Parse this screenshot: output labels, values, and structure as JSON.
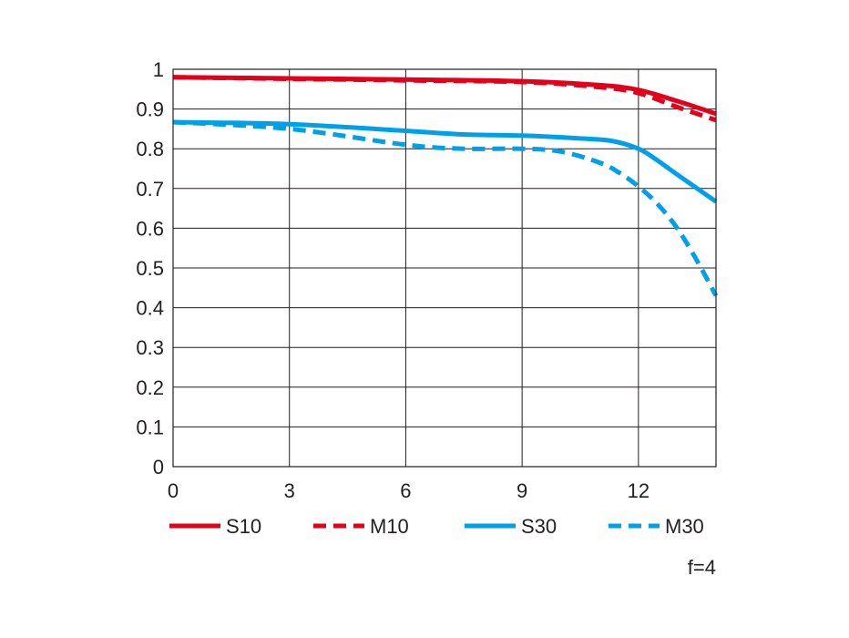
{
  "chart_data": {
    "type": "line",
    "xlabel": "",
    "ylabel": "",
    "xlim": [
      0,
      14
    ],
    "ylim": [
      0,
      1
    ],
    "xticks": [
      "0",
      "3",
      "6",
      "9",
      "12"
    ],
    "yticks": [
      "0",
      "0.1",
      "0.2",
      "0.3",
      "0.4",
      "0.5",
      "0.6",
      "0.7",
      "0.8",
      "0.9",
      "1"
    ],
    "grid": true,
    "legend_position": "bottom",
    "note": "f=4",
    "series": [
      {
        "name": "S10",
        "color": "#e3001b",
        "dash": false,
        "points": [
          [
            0,
            0.98
          ],
          [
            3,
            0.977
          ],
          [
            6,
            0.974
          ],
          [
            9,
            0.97
          ],
          [
            11,
            0.96
          ],
          [
            12,
            0.948
          ],
          [
            13,
            0.92
          ],
          [
            14,
            0.888
          ]
        ]
      },
      {
        "name": "M10",
        "color": "#e3001b",
        "dash": true,
        "points": [
          [
            0,
            0.98
          ],
          [
            3,
            0.976
          ],
          [
            6,
            0.972
          ],
          [
            9,
            0.968
          ],
          [
            11,
            0.955
          ],
          [
            12,
            0.94
          ],
          [
            13,
            0.905
          ],
          [
            14,
            0.872
          ]
        ]
      },
      {
        "name": "S30",
        "color": "#00a0e9",
        "dash": false,
        "points": [
          [
            0,
            0.867
          ],
          [
            3,
            0.862
          ],
          [
            6,
            0.845
          ],
          [
            7.5,
            0.836
          ],
          [
            9,
            0.833
          ],
          [
            10.5,
            0.826
          ],
          [
            11.3,
            0.82
          ],
          [
            12,
            0.8
          ],
          [
            12.5,
            0.77
          ],
          [
            13,
            0.735
          ],
          [
            14,
            0.667
          ]
        ]
      },
      {
        "name": "M30",
        "color": "#00a0e9",
        "dash": true,
        "points": [
          [
            0,
            0.867
          ],
          [
            3,
            0.85
          ],
          [
            6,
            0.81
          ],
          [
            7.5,
            0.8
          ],
          [
            9,
            0.8
          ],
          [
            10,
            0.793
          ],
          [
            11,
            0.765
          ],
          [
            11.5,
            0.74
          ],
          [
            12,
            0.705
          ],
          [
            12.5,
            0.66
          ],
          [
            13,
            0.6
          ],
          [
            13.5,
            0.52
          ],
          [
            14,
            0.43
          ]
        ]
      }
    ]
  }
}
